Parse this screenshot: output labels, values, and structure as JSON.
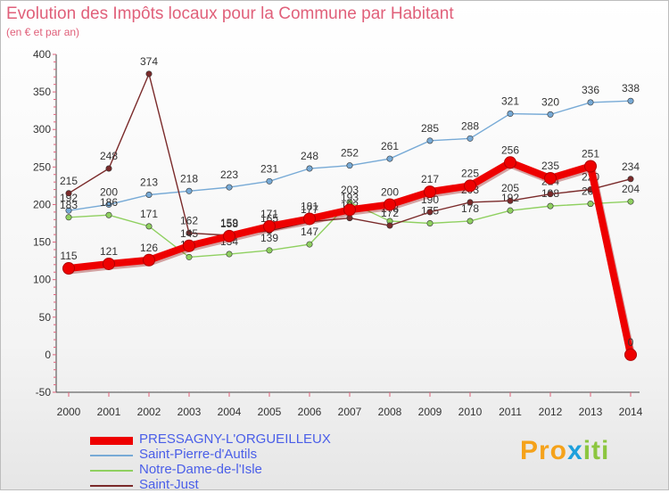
{
  "title": "Evolution des Impôts locaux pour la Commune par Habitant",
  "subtitle": "(en € et par an)",
  "logo": {
    "part1": "Pro",
    "part2": "x",
    "part3": "iti"
  },
  "chart_data": {
    "type": "line",
    "title": "Evolution des Impôts locaux pour la Commune par Habitant",
    "ylabel": "(en € et par an)",
    "xlabel": "",
    "ylim": [
      -50,
      400
    ],
    "yticks": [
      -50,
      0,
      50,
      100,
      150,
      200,
      250,
      300,
      350,
      400
    ],
    "x": [
      "2000",
      "2001",
      "2002",
      "2003",
      "2004",
      "2005",
      "2006",
      "2007",
      "2008",
      "2009",
      "2010",
      "2011",
      "2012",
      "2013",
      "2014"
    ],
    "legend_position": "bottom-left",
    "series": [
      {
        "name": "PRESSAGNY-L'ORGUEILLEUX",
        "color": "#ee0000",
        "emphasis": true,
        "values": [
          115,
          121,
          126,
          145,
          158,
          171,
          181,
          193,
          200,
          217,
          225,
          256,
          235,
          251,
          0
        ]
      },
      {
        "name": "Saint-Pierre-d'Autils",
        "color": "#77aad6",
        "emphasis": false,
        "values": [
          192,
          200,
          213,
          218,
          223,
          231,
          248,
          252,
          261,
          285,
          288,
          321,
          320,
          336,
          338
        ]
      },
      {
        "name": "Notre-Dame-de-l'Isle",
        "color": "#8fd060",
        "emphasis": false,
        "values": [
          183,
          186,
          171,
          130,
          134,
          139,
          147,
          203,
          178,
          175,
          178,
          192,
          198,
          201,
          204
        ]
      },
      {
        "name": "Saint-Just",
        "color": "#7a2a2a",
        "emphasis": false,
        "values": [
          215,
          248,
          374,
          162,
          159,
          165,
          177,
          182,
          172,
          190,
          203,
          205,
          214,
          220,
          234
        ]
      }
    ]
  }
}
